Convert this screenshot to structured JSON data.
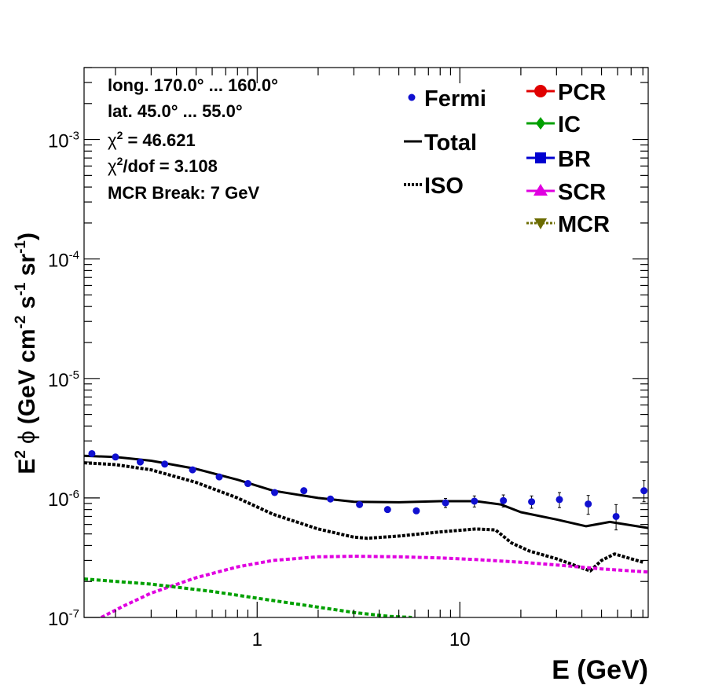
{
  "chart_data": {
    "type": "line",
    "xlabel": "E (GeV)",
    "ylabel_parts": {
      "e": "E",
      "e_sup": "2",
      "phi": "ϕ",
      "open": "(GeV cm",
      "cm_sup": "-2",
      "s": " s",
      "s_sup": "-1",
      "sr": " sr",
      "sr_sup": "-1",
      "close": ")"
    },
    "x_scale": "log",
    "y_scale": "log",
    "xlim": [
      0.14,
      85
    ],
    "ylim": [
      1e-07,
      0.004
    ],
    "x_ticks": [
      {
        "value": 1,
        "label": "1"
      },
      {
        "value": 10,
        "label": "10"
      }
    ],
    "y_ticks": [
      {
        "value": 1e-07,
        "base": "10",
        "exp": "-7"
      },
      {
        "value": 1e-06,
        "base": "10",
        "exp": "-6"
      },
      {
        "value": 1e-05,
        "base": "10",
        "exp": "-5"
      },
      {
        "value": 0.0001,
        "base": "10",
        "exp": "-4"
      },
      {
        "value": 0.001,
        "base": "10",
        "exp": "-3"
      }
    ],
    "info": {
      "long": "long. 170.0° ... 160.0°",
      "lat": "lat. 45.0° ... 55.0°",
      "chi2_prefix": "χ",
      "chi2_sup": "2",
      "chi2_value": " = 46.621",
      "chi2dof_prefix": "χ",
      "chi2dof_sup": "2",
      "chi2dof_value": "/dof = 3.108",
      "mcr_break": "MCR Break:  7 GeV"
    },
    "legend": [
      {
        "label": "Fermi",
        "color": "#1010d0",
        "style": "point-circle"
      },
      {
        "label": "Total",
        "color": "#000000",
        "style": "solid"
      },
      {
        "label": "ISO",
        "color": "#000000",
        "style": "dotted"
      },
      {
        "label": "PCR",
        "color": "#e00000",
        "style": "circle"
      },
      {
        "label": "IC",
        "color": "#00a000",
        "style": "diamond"
      },
      {
        "label": "BR",
        "color": "#0000d0",
        "style": "square"
      },
      {
        "label": "SCR",
        "color": "#e000e0",
        "style": "triangle"
      },
      {
        "label": "MCR",
        "color": "#6b6b00",
        "style": "triangle-down"
      }
    ],
    "fermi": {
      "x": [
        0.153,
        0.2,
        0.265,
        0.35,
        0.48,
        0.65,
        0.9,
        1.22,
        1.7,
        2.3,
        3.2,
        4.4,
        6.1,
        8.5,
        11.8,
        16.4,
        22.6,
        31,
        43,
        59,
        81
      ],
      "y": [
        2.35e-06,
        2.2e-06,
        2e-06,
        1.92e-06,
        1.72e-06,
        1.5e-06,
        1.32e-06,
        1.11e-06,
        1.15e-06,
        9.8e-07,
        8.8e-07,
        8e-07,
        7.8e-07,
        9.1e-07,
        9.4e-07,
        9.5e-07,
        9.3e-07,
        9.7e-07,
        8.9e-07,
        7e-07,
        1.15e-06
      ],
      "err_lo": [
        5e-08,
        5e-08,
        4e-08,
        4e-08,
        4e-08,
        3e-08,
        3e-08,
        3e-08,
        3e-08,
        3e-08,
        3e-08,
        3e-08,
        5e-08,
        8e-08,
        1e-07,
        1.1e-07,
        1.1e-07,
        1.4e-07,
        1.6e-07,
        1.6e-07,
        2.2e-07
      ],
      "err_hi": [
        5e-08,
        5e-08,
        4e-08,
        4e-08,
        4e-08,
        3e-08,
        3e-08,
        3e-08,
        3e-08,
        3e-08,
        3e-08,
        3e-08,
        5e-08,
        8e-08,
        1e-07,
        1.1e-07,
        1.1e-07,
        1.4e-07,
        1.6e-07,
        1.8e-07,
        2.5e-07
      ]
    },
    "series": [
      {
        "name": "Total",
        "color": "#000000",
        "style": "solid",
        "x": [
          0.14,
          0.2,
          0.3,
          0.5,
          0.8,
          1.2,
          2,
          3,
          5,
          8,
          12,
          16,
          20,
          30,
          42,
          55,
          85
        ],
        "y": [
          2.25e-06,
          2.2e-06,
          2.05e-06,
          1.75e-06,
          1.42e-06,
          1.15e-06,
          1e-06,
          9.3e-07,
          9.2e-07,
          9.4e-07,
          9.4e-07,
          8.8e-07,
          7.6e-07,
          6.6e-07,
          5.8e-07,
          6.3e-07,
          5.6e-07
        ]
      },
      {
        "name": "ISO",
        "color": "#000000",
        "style": "dotted",
        "x": [
          0.14,
          0.2,
          0.3,
          0.5,
          0.8,
          1.2,
          2,
          3,
          3.5,
          5,
          8,
          12,
          15,
          18,
          22,
          30,
          40,
          44,
          50,
          58,
          80
        ],
        "y": [
          1.97e-06,
          1.9e-06,
          1.72e-06,
          1.35e-06,
          1e-06,
          7.3e-07,
          5.5e-07,
          4.7e-07,
          4.6e-07,
          4.8e-07,
          5.2e-07,
          5.5e-07,
          5.4e-07,
          4.2e-07,
          3.6e-07,
          3.1e-07,
          2.6e-07,
          2.45e-07,
          3e-07,
          3.4e-07,
          2.9e-07
        ]
      },
      {
        "name": "SCR",
        "color": "#e000e0",
        "style": "dashed",
        "x": [
          0.17,
          0.22,
          0.3,
          0.5,
          0.8,
          1.2,
          2,
          3,
          5,
          8,
          12,
          20,
          30,
          50,
          85
        ],
        "y": [
          1e-07,
          1.25e-07,
          1.6e-07,
          2.15e-07,
          2.65e-07,
          3e-07,
          3.22e-07,
          3.25e-07,
          3.22e-07,
          3.15e-07,
          3.05e-07,
          2.9e-07,
          2.75e-07,
          2.55e-07,
          2.4e-07
        ]
      },
      {
        "name": "IC",
        "color": "#00a000",
        "style": "dashed",
        "x": [
          0.14,
          0.3,
          0.6,
          1,
          2,
          3,
          4.5,
          5.8
        ],
        "y": [
          2.1e-07,
          1.9e-07,
          1.65e-07,
          1.45e-07,
          1.22e-07,
          1.1e-07,
          1.02e-07,
          1e-07
        ]
      }
    ]
  }
}
